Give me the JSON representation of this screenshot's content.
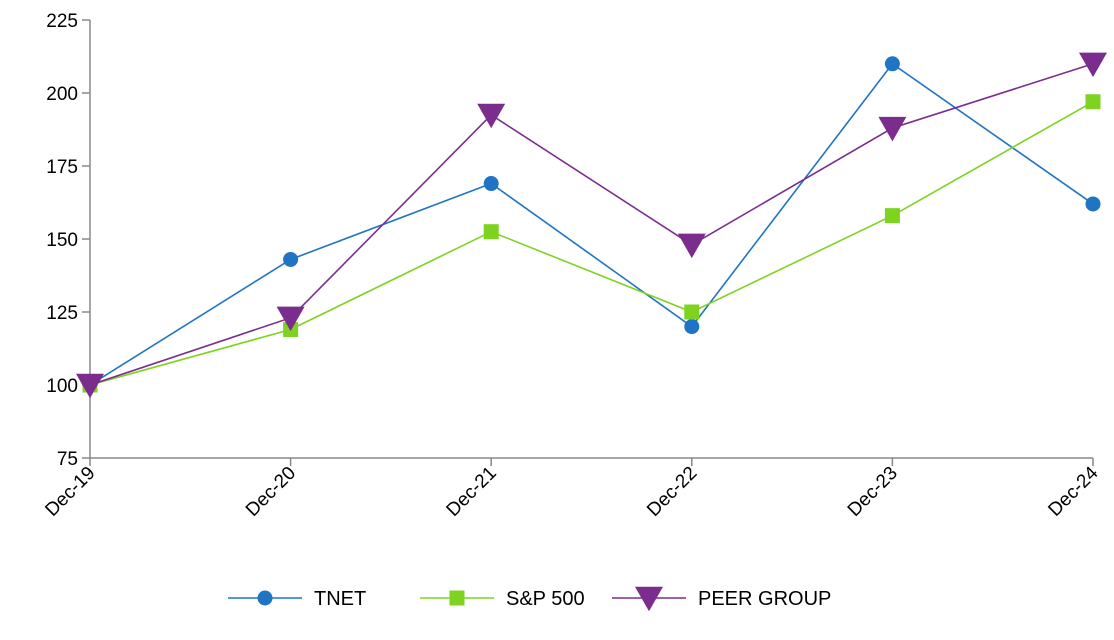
{
  "chart_data": {
    "type": "line",
    "title": "",
    "xlabel": "",
    "ylabel": "",
    "categories": [
      "Dec-19",
      "Dec-20",
      "Dec-21",
      "Dec-22",
      "Dec-23",
      "Dec-24"
    ],
    "ylim": [
      75,
      225
    ],
    "yticks": [
      75,
      100,
      125,
      150,
      175,
      200,
      225
    ],
    "grid": false,
    "legend_position": "bottom",
    "series": [
      {
        "name": "TNET",
        "values": [
          100,
          143,
          169,
          120,
          210,
          162
        ],
        "color": "#1f74c4",
        "marker": "circle"
      },
      {
        "name": "S&P 500",
        "values": [
          100,
          119,
          152.5,
          125,
          158,
          197
        ],
        "color": "#7ed321",
        "marker": "square"
      },
      {
        "name": "PEER GROUP",
        "values": [
          100,
          123,
          192.5,
          148,
          188,
          210
        ],
        "color": "#7b2d8e",
        "marker": "triangle-down"
      }
    ]
  }
}
